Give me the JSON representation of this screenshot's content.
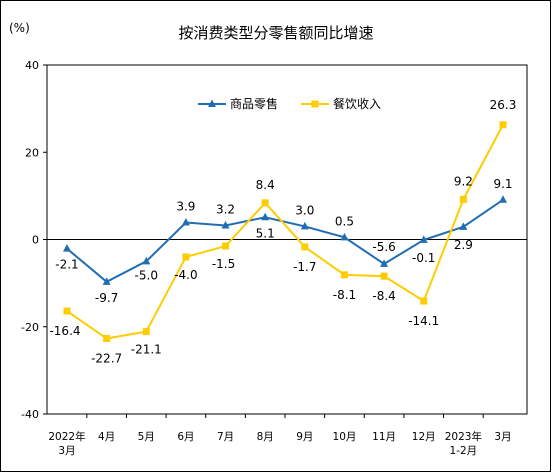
{
  "chart_data": {
    "type": "line",
    "title": "按消费类型分零售额同比增速",
    "unit_label": "(%)",
    "ylim": [
      -40,
      40
    ],
    "yticks": [
      40,
      20,
      0,
      -20,
      -40
    ],
    "categories": [
      [
        "2022年",
        "3月"
      ],
      [
        "4月"
      ],
      [
        "5月"
      ],
      [
        "6月"
      ],
      [
        "7月"
      ],
      [
        "8月"
      ],
      [
        "9月"
      ],
      [
        "10月"
      ],
      [
        "11月"
      ],
      [
        "12月"
      ],
      [
        "2023年",
        "1-2月"
      ],
      [
        "3月"
      ]
    ],
    "legend_position": "top-center",
    "grid": false,
    "series": [
      {
        "name": "商品零售",
        "color": "#1f6db3",
        "marker": "triangle",
        "values": [
          -2.1,
          -9.7,
          -5.0,
          3.9,
          3.2,
          5.1,
          3.0,
          0.5,
          -5.6,
          -0.1,
          2.9,
          9.1
        ],
        "labels": [
          "-2.1",
          "-9.7",
          "-5.0",
          "3.9",
          "3.2",
          "5.1",
          "3.0",
          "0.5",
          "-5.6",
          "-0.1",
          "2.9",
          "9.1"
        ]
      },
      {
        "name": "餐饮收入",
        "color": "#ffcc00",
        "marker": "square",
        "values": [
          -16.4,
          -22.7,
          -21.1,
          -4.0,
          -1.5,
          8.4,
          -1.7,
          -8.1,
          -8.4,
          -14.1,
          9.2,
          26.3
        ],
        "labels": [
          "-16.4",
          "-22.7",
          "-21.1",
          "-4.0",
          "-1.5",
          "8.4",
          "-1.7",
          "-8.1",
          "-8.4",
          "-14.1",
          "9.2",
          "26.3"
        ]
      }
    ]
  }
}
